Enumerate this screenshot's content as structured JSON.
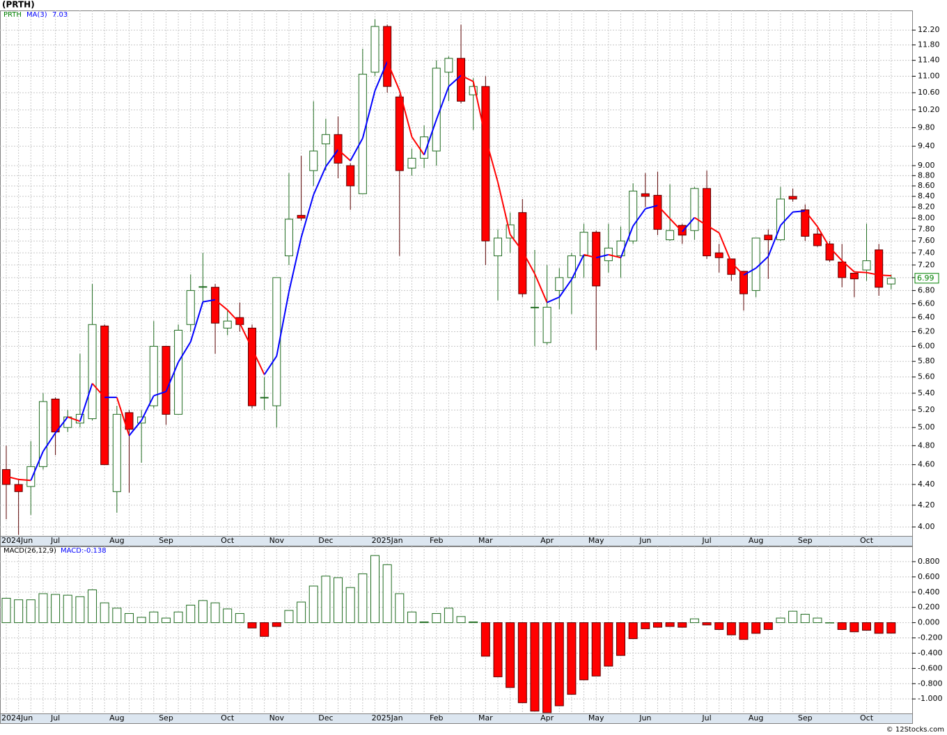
{
  "title": "(PRTH)",
  "watermark": "© 12Stocks.com",
  "chart_data": [
    {
      "type": "candlestick",
      "symbol": "PRTH",
      "symbol_color": "#008000",
      "categories": [
        "2024Jun",
        null,
        null,
        null,
        "Jul",
        null,
        null,
        null,
        null,
        "Aug",
        null,
        null,
        null,
        "Sep",
        null,
        null,
        null,
        null,
        "Oct",
        null,
        null,
        null,
        "Nov",
        null,
        null,
        null,
        "Dec",
        null,
        null,
        null,
        null,
        "2025Jan",
        null,
        null,
        null,
        "Feb",
        null,
        null,
        null,
        "Mar",
        null,
        null,
        null,
        null,
        "Apr",
        null,
        null,
        null,
        "May",
        null,
        null,
        null,
        "Jun",
        null,
        null,
        null,
        null,
        "Jul",
        null,
        null,
        null,
        "Aug",
        null,
        null,
        null,
        "Sep",
        null,
        null,
        null,
        null,
        "Oct",
        null,
        null
      ],
      "open": [
        4.55,
        4.4,
        4.38,
        4.58,
        5.33,
        5.0,
        5.05,
        5.1,
        6.28,
        4.33,
        5.17,
        5.05,
        5.25,
        6.0,
        5.15,
        6.3,
        6.85,
        6.85,
        6.25,
        6.4,
        6.25,
        5.35,
        5.25,
        7.35,
        8.05,
        8.9,
        9.45,
        9.65,
        9.0,
        8.45,
        11.1,
        12.3,
        10.5,
        8.95,
        9.15,
        9.3,
        11.1,
        11.45,
        10.55,
        10.75,
        7.35,
        7.65,
        8.1,
        6.55,
        6.05,
        6.8,
        7.0,
        7.35,
        7.75,
        7.27,
        7.35,
        7.6,
        8.45,
        8.42,
        7.62,
        7.87,
        7.78,
        8.55,
        7.4,
        7.3,
        7.1,
        6.8,
        7.7,
        7.62,
        8.4,
        8.15,
        7.72,
        7.55,
        7.25,
        7.07,
        7.12,
        7.45,
        6.9
      ],
      "high": [
        4.8,
        4.45,
        4.85,
        5.4,
        5.35,
        5.2,
        5.9,
        6.9,
        6.3,
        5.25,
        5.2,
        5.2,
        6.35,
        6.0,
        6.3,
        7.05,
        7.4,
        6.9,
        6.5,
        6.62,
        6.3,
        5.6,
        7.0,
        8.85,
        9.2,
        10.4,
        10.0,
        10.05,
        9.05,
        11.7,
        12.5,
        12.35,
        10.55,
        9.35,
        9.85,
        11.4,
        11.5,
        12.35,
        10.95,
        11.0,
        7.8,
        8.1,
        8.35,
        7.45,
        7.2,
        7.15,
        7.4,
        7.9,
        7.78,
        7.9,
        7.85,
        8.65,
        8.85,
        8.88,
        8.63,
        7.9,
        8.58,
        8.9,
        7.55,
        7.3,
        7.1,
        7.65,
        7.8,
        8.58,
        8.55,
        8.25,
        7.82,
        7.6,
        7.55,
        7.07,
        7.9,
        7.55,
        7.05
      ],
      "low": [
        4.07,
        3.93,
        4.11,
        4.55,
        4.7,
        4.95,
        5.0,
        5.08,
        4.6,
        4.13,
        4.32,
        4.62,
        5.22,
        5.03,
        5.15,
        6.2,
        6.6,
        5.9,
        6.15,
        6.2,
        5.22,
        5.2,
        5.0,
        7.2,
        7.95,
        8.6,
        8.9,
        8.75,
        8.15,
        8.45,
        11.0,
        10.6,
        7.35,
        8.8,
        8.95,
        9.0,
        10.4,
        10.35,
        9.75,
        7.2,
        6.65,
        7.4,
        6.7,
        6.0,
        6.02,
        6.52,
        6.45,
        7.0,
        5.95,
        7.08,
        7.0,
        7.55,
        8.2,
        7.7,
        7.6,
        7.55,
        7.62,
        7.3,
        7.08,
        6.95,
        6.5,
        6.7,
        6.98,
        7.6,
        8.3,
        7.6,
        7.5,
        7.25,
        6.85,
        6.7,
        6.95,
        6.72,
        6.82
      ],
      "close": [
        4.4,
        4.33,
        4.58,
        5.3,
        4.95,
        5.12,
        5.15,
        6.3,
        4.6,
        5.15,
        4.98,
        5.12,
        6.0,
        5.15,
        6.22,
        6.8,
        6.86,
        6.32,
        6.35,
        6.3,
        5.25,
        5.35,
        7.0,
        7.98,
        8.0,
        9.3,
        9.65,
        9.05,
        8.6,
        11.05,
        12.3,
        10.75,
        8.9,
        9.15,
        9.6,
        11.2,
        11.45,
        10.4,
        10.75,
        7.6,
        7.65,
        7.88,
        6.75,
        6.55,
        6.55,
        7.0,
        7.35,
        7.75,
        6.87,
        7.48,
        7.6,
        8.5,
        8.4,
        7.8,
        7.78,
        7.7,
        8.55,
        7.35,
        7.32,
        7.05,
        6.75,
        7.65,
        7.62,
        8.35,
        8.35,
        7.68,
        7.52,
        7.28,
        7.0,
        6.98,
        7.27,
        6.85,
        6.99
      ],
      "up_color": "#ffffff",
      "up_edge": "#1f6b1f",
      "down_color": "#ff0000",
      "down_edge": "#5a0000",
      "last_box_color": "#008000",
      "ma": {
        "name": "MA(3)",
        "up_color": "#0000ff",
        "down_color": "#ff0000",
        "values": [
          4.48,
          4.45,
          4.44,
          4.74,
          4.94,
          5.12,
          5.07,
          5.52,
          5.35,
          5.35,
          4.91,
          5.08,
          5.37,
          5.42,
          5.79,
          6.06,
          6.63,
          6.66,
          6.51,
          6.32,
          5.97,
          5.63,
          5.87,
          6.78,
          7.66,
          8.43,
          8.98,
          9.33,
          9.1,
          9.57,
          10.65,
          11.37,
          10.65,
          9.6,
          9.22,
          9.98,
          10.75,
          11.02,
          10.87,
          9.58,
          8.67,
          7.71,
          7.43,
          7.06,
          6.62,
          6.7,
          6.97,
          7.37,
          7.32,
          7.37,
          7.32,
          7.86,
          8.17,
          8.23,
          7.99,
          7.76,
          8.01,
          7.87,
          7.74,
          7.24,
          7.04,
          7.15,
          7.34,
          7.87,
          8.11,
          8.13,
          7.85,
          7.49,
          7.27,
          7.09,
          7.08,
          7.04,
          7.03
        ]
      },
      "ylim": [
        3.92,
        12.75
      ],
      "log_scale": true,
      "grid": true,
      "yticks": [
        {
          "value": 4,
          "label": "4.00"
        },
        {
          "value": 4.2,
          "label": "4.20"
        },
        {
          "value": 4.4,
          "label": "4.40"
        },
        {
          "value": 4.6,
          "label": "4.60"
        },
        {
          "value": 4.8,
          "label": "4.80"
        },
        {
          "value": 5,
          "label": "5.00"
        },
        {
          "value": 5.2,
          "label": "5.20"
        },
        {
          "value": 5.4,
          "label": "5.40"
        },
        {
          "value": 5.6,
          "label": "5.60"
        },
        {
          "value": 5.8,
          "label": "5.80"
        },
        {
          "value": 6,
          "label": "6.00"
        },
        {
          "value": 6.2,
          "label": "6.20"
        },
        {
          "value": 6.4,
          "label": "6.40"
        },
        {
          "value": 6.6,
          "label": "6.60"
        },
        {
          "value": 6.8,
          "label": "6.80"
        },
        {
          "value": 7,
          "label": "7.00"
        },
        {
          "value": 7.2,
          "label": "7.20"
        },
        {
          "value": 7.4,
          "label": "7.40"
        },
        {
          "value": 7.6,
          "label": "7.60"
        },
        {
          "value": 7.8,
          "label": "7.80"
        },
        {
          "value": 8,
          "label": "8.00"
        },
        {
          "value": 8.2,
          "label": "8.20"
        },
        {
          "value": 8.4,
          "label": "8.40"
        },
        {
          "value": 8.6,
          "label": "8.60"
        },
        {
          "value": 8.8,
          "label": "8.80"
        },
        {
          "value": 9,
          "label": "9.00"
        },
        {
          "value": 9.4,
          "label": "9.40"
        },
        {
          "value": 9.8,
          "label": "9.80"
        },
        {
          "value": 10.2,
          "label": "10.20"
        },
        {
          "value": 10.6,
          "label": "10.60"
        },
        {
          "value": 11,
          "label": "11.00"
        },
        {
          "value": 11.4,
          "label": "11.40"
        },
        {
          "value": 11.8,
          "label": "11.80"
        },
        {
          "value": 12.2,
          "label": "12.20"
        }
      ]
    },
    {
      "type": "bar",
      "name": "MACD(26,12,9)",
      "value_label": "MACD:-0.138",
      "name_color": "#000000",
      "label_color": "#0000ff",
      "categories": [
        "2024Jun",
        null,
        null,
        null,
        "Jul",
        null,
        null,
        null,
        null,
        "Aug",
        null,
        null,
        null,
        "Sep",
        null,
        null,
        null,
        null,
        "Oct",
        null,
        null,
        null,
        "Nov",
        null,
        null,
        null,
        "Dec",
        null,
        null,
        null,
        null,
        "2025Jan",
        null,
        null,
        null,
        "Feb",
        null,
        null,
        null,
        "Mar",
        null,
        null,
        null,
        null,
        "Apr",
        null,
        null,
        null,
        "May",
        null,
        null,
        null,
        "Jun",
        null,
        null,
        null,
        null,
        "Jul",
        null,
        null,
        null,
        "Aug",
        null,
        null,
        null,
        "Sep",
        null,
        null,
        null,
        null,
        "Oct",
        null,
        null
      ],
      "values": [
        0.32,
        0.3,
        0.3,
        0.38,
        0.37,
        0.36,
        0.34,
        0.43,
        0.26,
        0.19,
        0.12,
        0.07,
        0.14,
        0.06,
        0.14,
        0.23,
        0.29,
        0.26,
        0.18,
        0.12,
        -0.07,
        -0.18,
        -0.05,
        0.16,
        0.27,
        0.48,
        0.61,
        0.59,
        0.46,
        0.64,
        0.88,
        0.76,
        0.38,
        0.14,
        0.01,
        0.12,
        0.19,
        0.08,
        0.01,
        -0.44,
        -0.71,
        -0.85,
        -1.05,
        -1.16,
        -1.18,
        -1.09,
        -0.94,
        -0.75,
        -0.7,
        -0.57,
        -0.43,
        -0.21,
        -0.08,
        -0.06,
        -0.05,
        -0.06,
        0.05,
        -0.03,
        -0.09,
        -0.16,
        -0.22,
        -0.14,
        -0.09,
        0.06,
        0.15,
        0.11,
        0.06,
        0.0,
        -0.09,
        -0.12,
        -0.1,
        -0.14,
        -0.138
      ],
      "pos_color": "#ffffff",
      "pos_edge": "#1f6b1f",
      "neg_color": "#ff0000",
      "neg_edge": "#5a0000",
      "ylim": [
        -1.19,
        1.0
      ],
      "grid": true,
      "yticks": [
        {
          "value": 0.8,
          "label": "0.800"
        },
        {
          "value": 0.6,
          "label": "0.600"
        },
        {
          "value": 0.4,
          "label": "0.400"
        },
        {
          "value": 0.2,
          "label": "0.200"
        },
        {
          "value": 0,
          "label": "0.000"
        },
        {
          "value": -0.2,
          "label": "-0.200"
        },
        {
          "value": -0.4,
          "label": "-0.400"
        },
        {
          "value": -0.6,
          "label": "-0.600"
        },
        {
          "value": -0.8,
          "label": "-0.800"
        },
        {
          "value": -1.0,
          "label": "-1.000"
        }
      ]
    }
  ]
}
